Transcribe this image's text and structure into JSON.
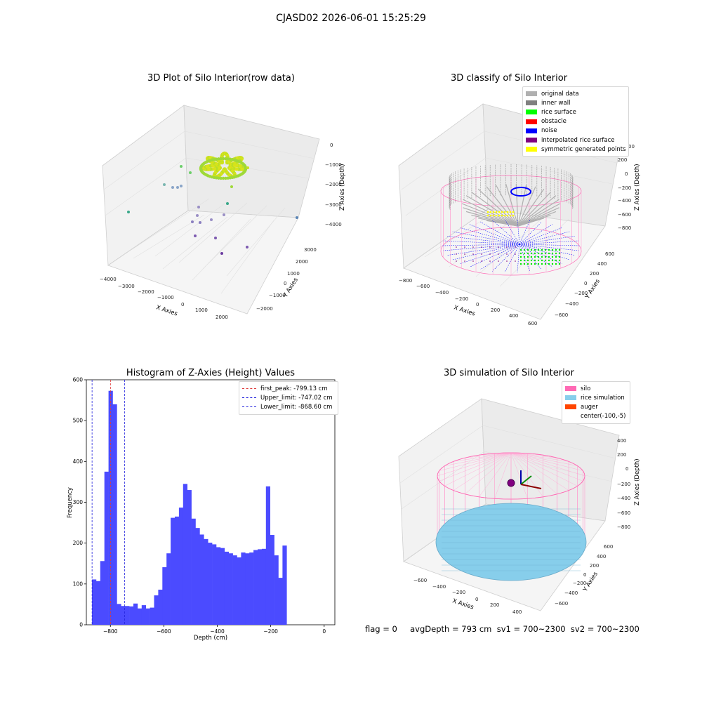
{
  "figure": {
    "suptitle": "CJASD02 2026-06-01 15:25:29",
    "status": "flag = 0     avgDepth = 793 cm  sv1 = 700~2300  sv2 = 700~2300"
  },
  "colors": {
    "hist_bar": "#4b4bff",
    "first_peak": "#e03c3c",
    "limits": "#2222dd",
    "silo": "#ff69b4",
    "rice_simulation": "#87ceeb",
    "auger": "#ff4500",
    "original_data": "#b0b0b0",
    "inner_wall": "#808080",
    "rice_surface": "#00ff00",
    "obstacle": "#ff0000",
    "noise": "#0000ff",
    "interpolated_rice_surface": "#800080",
    "symmetric_generated_points": "#ffff00"
  },
  "chart_data": [
    {
      "type": "scatter",
      "title": "3D Plot of Silo Interior(row data)",
      "xlabel": "X Axies",
      "ylabel": "Y Axies",
      "zlabel": "Z Axies (Depth)",
      "x_ticks": [
        "-4000",
        "-3000",
        "-2000",
        "-1000",
        "0",
        "1000",
        "2000"
      ],
      "y_ticks": [
        "-2000",
        "-1000",
        "0",
        "1000",
        "2000",
        "3000"
      ],
      "z_ticks": [
        "0",
        "-1000",
        "-2000",
        "-3000",
        "-4000"
      ]
    },
    {
      "type": "scatter",
      "title": "3D classify of Silo Interior",
      "xlabel": "X Axies",
      "ylabel": "Y Axies",
      "zlabel": "Z Axies (Depth)",
      "x_ticks": [
        "-800",
        "-600",
        "-400",
        "-200",
        "0",
        "200",
        "400",
        "600"
      ],
      "y_ticks": [
        "-600",
        "-400",
        "-200",
        "0",
        "200",
        "400",
        "600"
      ],
      "z_ticks": [
        "200",
        "0",
        "-200",
        "-400",
        "-600",
        "-800"
      ],
      "z_tick_partial": "00",
      "legend": [
        "original data",
        "inner wall",
        "rice surface",
        "obstacle",
        "noise",
        "interpolated rice surface",
        "symmetric generated points"
      ]
    },
    {
      "type": "bar",
      "title": "Histogram of Z-Axies (Height) Values",
      "xlabel": "Depth (cm)",
      "ylabel": "Frequency",
      "xlim": [
        -890,
        40
      ],
      "ylim": [
        0,
        600
      ],
      "x_ticks": [
        -800,
        -600,
        -400,
        -200,
        0
      ],
      "y_ticks": [
        0,
        100,
        200,
        300,
        400,
        500,
        600
      ],
      "bin_start": -869,
      "bin_width": 15.5,
      "values": [
        111,
        107,
        156,
        375,
        573,
        540,
        51,
        46,
        46,
        45,
        52,
        40,
        48,
        40,
        42,
        72,
        86,
        141,
        175,
        262,
        265,
        287,
        345,
        330,
        260,
        237,
        221,
        210,
        201,
        197,
        190,
        188,
        179,
        175,
        170,
        165,
        177,
        175,
        177,
        183,
        185,
        186,
        339,
        220,
        170,
        115,
        194
      ],
      "vlines": [
        {
          "label": "first_peak: -799.13 cm",
          "x": -799.13,
          "color": "#e03c3c"
        },
        {
          "label": "Upper_limit: -747.02 cm",
          "x": -747.02,
          "color": "#2222dd"
        },
        {
          "label": "Lower_limit: -868.60 cm",
          "x": -868.6,
          "color": "#2222dd"
        }
      ]
    },
    {
      "type": "area",
      "title": "3D simulation of Silo Interior",
      "xlabel": "X Axies",
      "ylabel": "Y Axies",
      "zlabel": "Z Axies (Depth)",
      "x_ticks": [
        "-600",
        "-400",
        "-200",
        "0",
        "200",
        "400"
      ],
      "y_ticks": [
        "-600",
        "-400",
        "-200",
        "0",
        "200",
        "400",
        "600"
      ],
      "z_ticks": [
        "400",
        "200",
        "0",
        "-200",
        "-400",
        "-600",
        "-800"
      ],
      "legend": [
        "silo",
        "rice simulation",
        "auger",
        "center(-100,-5)"
      ]
    }
  ]
}
